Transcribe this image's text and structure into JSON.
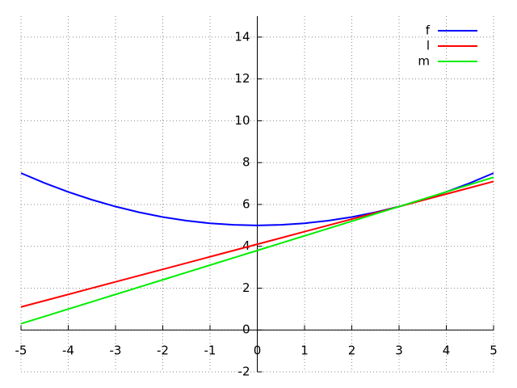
{
  "chart_data": {
    "type": "line",
    "x": [
      -5,
      -4.5,
      -4,
      -3.5,
      -3,
      -2.5,
      -2,
      -1.5,
      -1,
      -0.5,
      0,
      0.5,
      1,
      1.5,
      2,
      2.5,
      3,
      3.5,
      4,
      4.5,
      5
    ],
    "series": [
      {
        "name": "f",
        "color": "#0000ff",
        "values": [
          7.5,
          7.025,
          6.6,
          6.225,
          5.9,
          5.625,
          5.4,
          5.225,
          5.1,
          5.025,
          5,
          5.025,
          5.1,
          5.225,
          5.4,
          5.625,
          5.9,
          6.225,
          6.6,
          7.025,
          7.5
        ]
      },
      {
        "name": "l",
        "color": "#ff0000",
        "values": [
          1.1,
          1.4,
          1.7,
          2.0,
          2.3,
          2.6,
          2.9,
          3.2,
          3.5,
          3.8,
          4.1,
          4.4,
          4.7,
          5.0,
          5.3,
          5.6,
          5.9,
          6.2,
          6.5,
          6.8,
          7.1
        ]
      },
      {
        "name": "m",
        "color": "#00ee00",
        "values": [
          0.3,
          0.65,
          1.0,
          1.35,
          1.7,
          2.05,
          2.4,
          2.75,
          3.1,
          3.45,
          3.8,
          4.15,
          4.5,
          4.85,
          5.2,
          5.55,
          5.9,
          6.25,
          6.6,
          6.95,
          7.3
        ]
      }
    ],
    "xlim": [
      -5,
      5
    ],
    "ylim": [
      -2,
      15
    ],
    "xticks": [
      -5,
      -4,
      -3,
      -2,
      -1,
      0,
      1,
      2,
      3,
      4,
      5
    ],
    "yticks": [
      -2,
      0,
      2,
      4,
      6,
      8,
      10,
      12,
      14
    ],
    "grid": true,
    "legend": "top-right"
  }
}
